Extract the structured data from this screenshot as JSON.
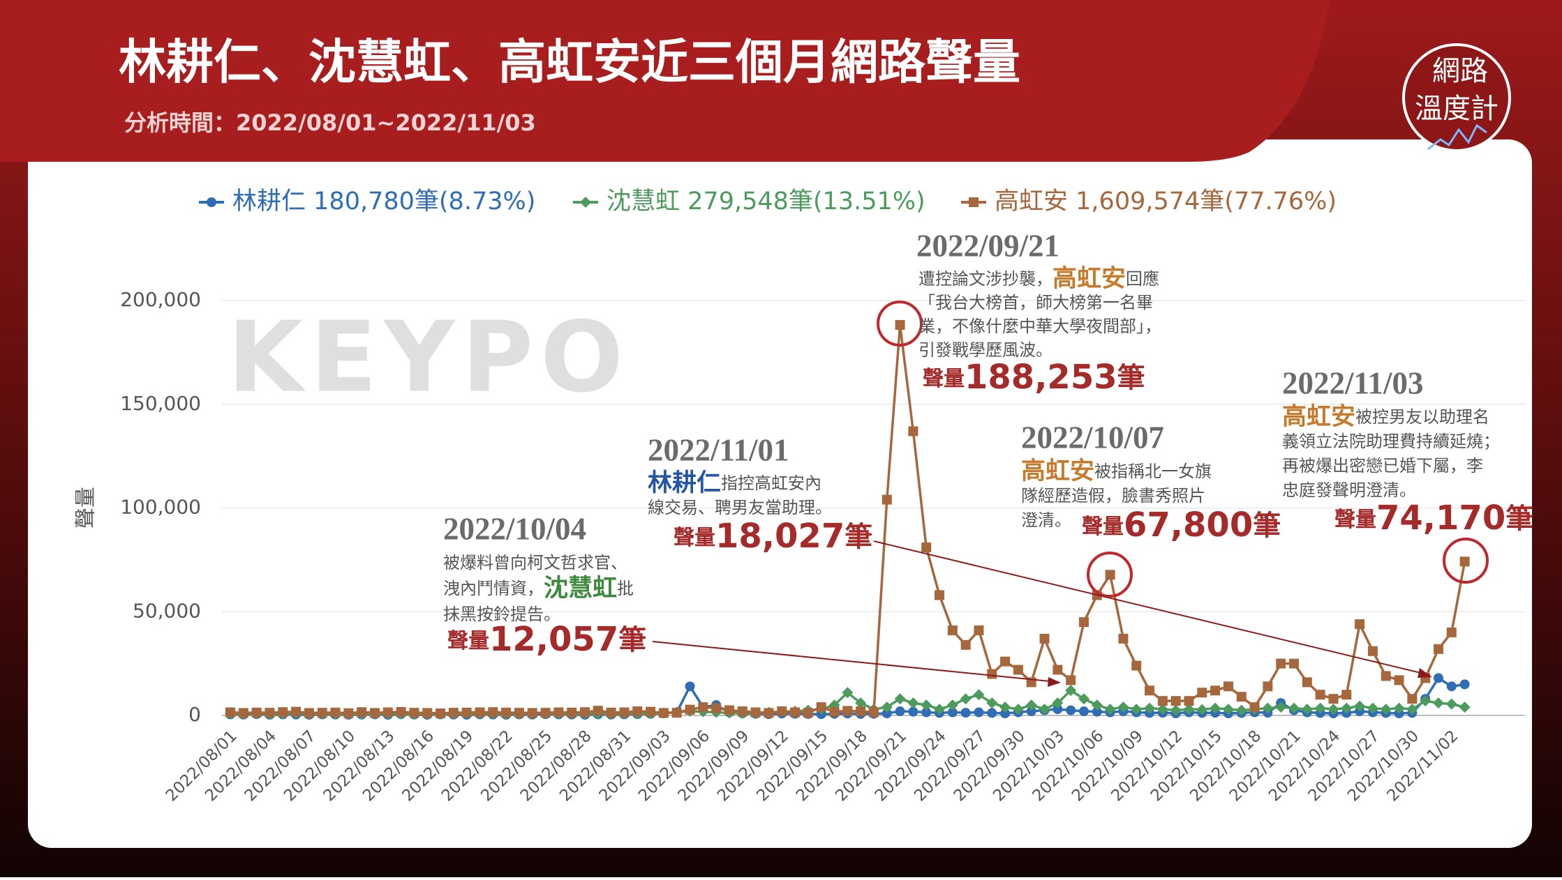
{
  "chart_data": {
    "type": "line",
    "title": "林耕仁、沈慧虹、高虹安近三個月網路聲量",
    "subtitle": "分析時間：2022/08/01~2022/11/03",
    "y_label": "聲量",
    "watermark": "KEYPO",
    "logo": [
      "網路",
      "溫度計"
    ],
    "ylim": [
      0,
      200000
    ],
    "yticks": [
      0,
      {
        "value": 50000,
        "label": "50,000"
      },
      {
        "value": 100000,
        "label": "100,000"
      },
      {
        "value": 150000,
        "label": "150,000"
      },
      {
        "value": 200000,
        "label": "200,000"
      }
    ],
    "grid": true,
    "categories": [
      "2022/08/01",
      null,
      null,
      "2022/08/04",
      null,
      null,
      "2022/08/07",
      null,
      null,
      "2022/08/10",
      null,
      null,
      "2022/08/13",
      null,
      null,
      "2022/08/16",
      null,
      null,
      "2022/08/19",
      null,
      null,
      "2022/08/22",
      null,
      null,
      "2022/08/25",
      null,
      null,
      "2022/08/28",
      null,
      null,
      "2022/08/31",
      null,
      null,
      "2022/09/03",
      null,
      null,
      "2022/09/06",
      null,
      null,
      "2022/09/09",
      null,
      null,
      "2022/09/12",
      null,
      null,
      "2022/09/15",
      null,
      null,
      "2022/09/18",
      null,
      null,
      "2022/09/21",
      null,
      null,
      "2022/09/24",
      null,
      null,
      "2022/09/27",
      null,
      null,
      "2022/09/30",
      null,
      null,
      "2022/10/03",
      null,
      null,
      "2022/10/06",
      null,
      null,
      "2022/10/09",
      null,
      null,
      "2022/10/12",
      null,
      null,
      "2022/10/15",
      null,
      null,
      "2022/10/18",
      null,
      null,
      "2022/10/21",
      null,
      null,
      "2022/10/24",
      null,
      null,
      "2022/10/27",
      null,
      null,
      "2022/10/30",
      null,
      null,
      "2022/11/02",
      null
    ],
    "series": [
      {
        "name": "林耕仁",
        "total_label": "180,780筆(8.73%)",
        "color": "#2f6db5",
        "marker": "circle",
        "values": [
          500,
          400,
          600,
          300,
          500,
          400,
          300,
          500,
          400,
          300,
          400,
          500,
          300,
          600,
          400,
          300,
          500,
          400,
          300,
          500,
          400,
          300,
          500,
          400,
          600,
          500,
          400,
          300,
          500,
          400,
          500,
          600,
          800,
          1000,
          1500,
          14000,
          4000,
          5000,
          1500,
          1000,
          800,
          600,
          900,
          800,
          700,
          600,
          800,
          900,
          700,
          800,
          1000,
          2000,
          1800,
          1500,
          1200,
          1500,
          1300,
          1500,
          1200,
          1000,
          1500,
          2000,
          2500,
          3000,
          2500,
          2000,
          1800,
          1500,
          2000,
          1500,
          1200,
          1300,
          1000,
          1500,
          1200,
          1300,
          1000,
          1200,
          1500,
          1300,
          6000,
          2500,
          1500,
          1200,
          1000,
          1200,
          2000,
          1500,
          1200,
          1000,
          1200,
          8000,
          18027,
          14000,
          15000
        ]
      },
      {
        "name": "沈慧虹",
        "total_label": "279,548筆(13.51%)",
        "color": "#4c9a5c",
        "marker": "diamond",
        "values": [
          800,
          700,
          900,
          600,
          800,
          1000,
          700,
          900,
          800,
          600,
          700,
          800,
          900,
          700,
          600,
          800,
          700,
          900,
          1000,
          800,
          700,
          800,
          900,
          1000,
          1200,
          900,
          800,
          1000,
          900,
          700,
          800,
          900,
          1000,
          1200,
          1500,
          2000,
          1800,
          1500,
          1200,
          1000,
          1200,
          1500,
          1800,
          2000,
          2500,
          3000,
          5000,
          11000,
          6000,
          3000,
          4000,
          8000,
          6000,
          5000,
          3000,
          5000,
          8000,
          10000,
          6000,
          4000,
          3000,
          5000,
          3000,
          6000,
          12057,
          8000,
          5000,
          3000,
          4000,
          3000,
          3500,
          3000,
          2500,
          3000,
          2800,
          3500,
          3000,
          2500,
          3000,
          3500,
          4000,
          3500,
          3000,
          3500,
          3000,
          3500,
          4500,
          3500,
          3000,
          3500,
          3000,
          7000,
          6000,
          5500,
          4000
        ]
      },
      {
        "name": "高虹安",
        "total_label": "1,609,574筆(77.76%)",
        "color": "#a5673b",
        "marker": "square",
        "values": [
          1500,
          1200,
          1400,
          1300,
          1600,
          1800,
          1200,
          1300,
          1400,
          1100,
          1600,
          1200,
          1500,
          1700,
          1300,
          1200,
          1000,
          1300,
          1400,
          1500,
          1600,
          1400,
          1300,
          1200,
          1300,
          1500,
          1400,
          1600,
          2300,
          1400,
          1500,
          2000,
          1800,
          1200,
          1300,
          2800,
          4000,
          3500,
          2500,
          2000,
          1500,
          1200,
          2000,
          1500,
          1300,
          4000,
          1800,
          2200,
          2000,
          1500,
          104000,
          188253,
          137000,
          81000,
          58000,
          41000,
          34000,
          41000,
          20000,
          26000,
          22000,
          16000,
          37000,
          22000,
          17000,
          45000,
          58000,
          67800,
          37000,
          24000,
          12000,
          7000,
          7000,
          7000,
          11000,
          12000,
          14000,
          9000,
          4000,
          14000,
          25000,
          25000,
          16000,
          10000,
          8000,
          10000,
          44000,
          31000,
          19000,
          17000,
          8000,
          18000,
          32000,
          40000,
          74170
        ]
      }
    ],
    "annotations": [
      {
        "date": "2022/09/21",
        "name": "高虹安",
        "name_color": "#c67a2c",
        "lines": [
          [
            "遭控論文涉抄襲，",
            "高虹安",
            "回應"
          ],
          [
            "「我台大榜首，師大榜第一名畢"
          ],
          [
            "業，不像什麼中華大學夜間部」，"
          ],
          [
            "引發戰學歷風波。"
          ]
        ],
        "volume_prefix": "聲量",
        "volume_label": "188,253",
        "volume_suffix": "筆"
      },
      {
        "date": "2022/11/01",
        "name": "林耕仁",
        "name_color": "#2456a6",
        "lines": [
          [
            "林耕仁",
            "指控高虹安內"
          ],
          [
            "線交易、聘男友當助理。"
          ]
        ],
        "volume_prefix": "聲量",
        "volume_label": "18,027",
        "volume_suffix": "筆"
      },
      {
        "date": "2022/10/04",
        "name": "沈慧虹",
        "name_color": "#3d8a3f",
        "lines": [
          [
            "被爆料曾向柯文哲求官、"
          ],
          [
            "洩內鬥情資，",
            "沈慧虹",
            "批"
          ],
          [
            "抹黑按鈴提告。"
          ]
        ],
        "volume_prefix": "聲量",
        "volume_label": "12,057",
        "volume_suffix": "筆"
      },
      {
        "date": "2022/10/07",
        "name": "高虹安",
        "name_color": "#c67a2c",
        "lines": [
          [
            "高虹安",
            "被指稱北一女旗"
          ],
          [
            "隊經歷造假，臉書秀照片"
          ],
          [
            "澄清。"
          ]
        ],
        "volume_prefix": "聲量",
        "volume_label": "67,800",
        "volume_suffix": "筆"
      },
      {
        "date": "2022/11/03",
        "name": "高虹安",
        "name_color": "#c67a2c",
        "lines": [
          [
            "高虹安",
            "被控男友以助理名"
          ],
          [
            "義領立法院助理費持續延燒；"
          ],
          [
            "再被爆出密戀已婚下屬，李"
          ],
          [
            "忠庭發聲明澄清。"
          ]
        ],
        "volume_prefix": "聲量",
        "volume_label": "74,170",
        "volume_suffix": "筆"
      }
    ]
  }
}
